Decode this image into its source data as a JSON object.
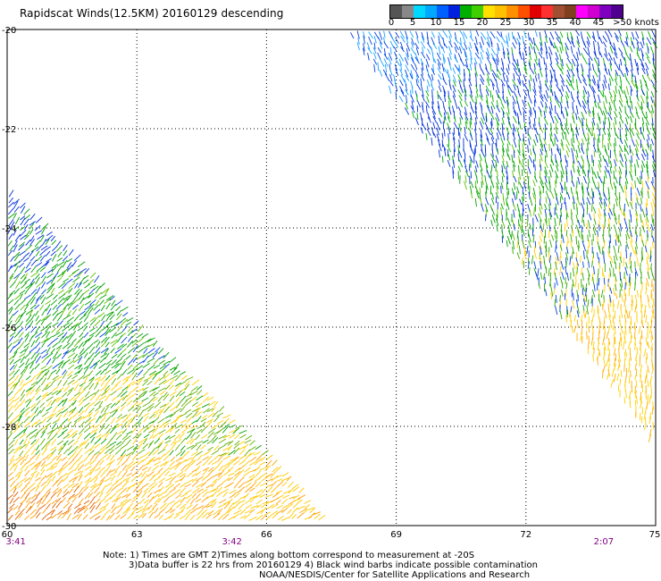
{
  "title": "Rapidscat Winds(12.5KM) 20160129 descending",
  "colorbar": {
    "colors": [
      "#555555",
      "#888888",
      "#00d8ff",
      "#00a8ff",
      "#0060ff",
      "#0020e0",
      "#00b000",
      "#40d000",
      "#ffe000",
      "#ffc000",
      "#ff9000",
      "#ff5000",
      "#e00000",
      "#ff3030",
      "#a05030",
      "#804020",
      "#ff00ff",
      "#d000d0",
      "#8000c0",
      "#500090"
    ],
    "labels": [
      "0",
      "5",
      "10",
      "15",
      "20",
      "25",
      "30",
      "35",
      "40",
      "45",
      ">50 knots"
    ]
  },
  "axes": {
    "x_ticks": [
      "60",
      "63",
      "66",
      "69",
      "72",
      "75"
    ],
    "y_ticks": [
      "-20",
      "-22",
      "-24",
      "-26",
      "-28",
      "-30"
    ],
    "xlim": [
      60,
      75
    ],
    "ylim": [
      -30,
      -20
    ]
  },
  "times": [
    {
      "label": "3:41",
      "lon": 60.2
    },
    {
      "label": "3:42",
      "lon": 65.2
    },
    {
      "label": "2:07",
      "lon": 73.8
    }
  ],
  "notes": {
    "line1": "Note: 1) Times are GMT 2)Times along bottom correspond to measurement at -20S",
    "line2": "3)Data buffer is 22 hrs from 20160129 4) Black wind barbs indicate possible contamination",
    "line3": "NOAA/NESDIS/Center for Satellite Applications and Research"
  }
}
